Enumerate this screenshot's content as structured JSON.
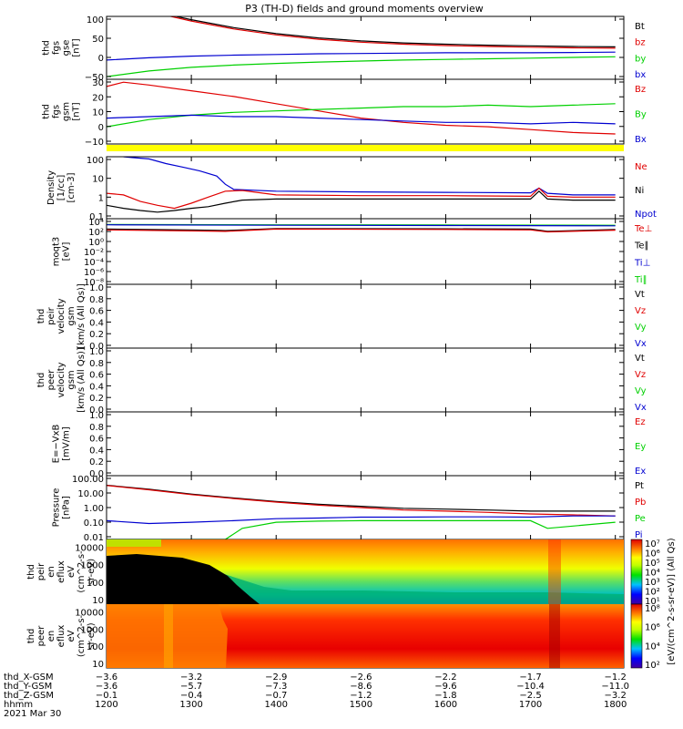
{
  "title": "P3 (TH-D) fields and ground moments overview",
  "colors": {
    "black": "#000000",
    "red": "#e00000",
    "green": "#00d000",
    "blue": "#0000d0",
    "yellow": "#ffff00"
  },
  "chart_data": [
    {
      "type": "line",
      "ylabel": [
        "thd",
        "fgs",
        "gse",
        "[nT]"
      ],
      "yticks": [
        "100",
        "50",
        "0",
        "−50"
      ],
      "ylim": [
        -80,
        110
      ],
      "legend": [
        {
          "name": "Bt",
          "color": "#000000"
        },
        {
          "name": "bz",
          "color": "#e00000"
        },
        {
          "name": "by",
          "color": "#00d000"
        },
        {
          "name": "bx",
          "color": "#0000d0"
        }
      ],
      "series": [
        {
          "name": "Bt",
          "color": "#000000",
          "x": [
            1200,
            1250,
            1300,
            1350,
            1400,
            1450,
            1500,
            1550,
            1600,
            1650,
            1700,
            1750,
            1800
          ],
          "y": [
            160,
            128,
            100,
            76,
            58,
            45,
            36,
            30,
            26,
            23,
            21,
            19,
            18
          ]
        },
        {
          "name": "bz",
          "color": "#e00000",
          "x": [
            1200,
            1250,
            1300,
            1350,
            1400,
            1450,
            1500,
            1550,
            1600,
            1650,
            1700,
            1750,
            1800
          ],
          "y": [
            158,
            125,
            96,
            72,
            54,
            41,
            32,
            26,
            22,
            19,
            17,
            15,
            14
          ]
        },
        {
          "name": "by",
          "color": "#00d000",
          "x": [
            1200,
            1250,
            1300,
            1350,
            1400,
            1450,
            1500,
            1550,
            1600,
            1650,
            1700,
            1750,
            1800
          ],
          "y": [
            -72,
            -55,
            -44,
            -37,
            -32,
            -28,
            -25,
            -22,
            -20,
            -18,
            -16,
            -14,
            -12
          ]
        },
        {
          "name": "bx",
          "color": "#0000d0",
          "x": [
            1200,
            1250,
            1300,
            1350,
            1400,
            1450,
            1500,
            1550,
            1600,
            1650,
            1700,
            1750,
            1800
          ],
          "y": [
            -22,
            -15,
            -10,
            -7,
            -5,
            -3,
            -2,
            -1,
            0,
            0,
            0,
            1,
            2
          ]
        }
      ]
    },
    {
      "type": "line",
      "ylabel": [
        "thd",
        "fgs",
        "gsm",
        "[nT]"
      ],
      "yticks": [
        "30",
        "20",
        "10",
        "0",
        "−10"
      ],
      "ylim": [
        -15,
        30
      ],
      "legend": [
        {
          "name": "Bz",
          "color": "#e00000"
        },
        {
          "name": "By",
          "color": "#00d000"
        },
        {
          "name": "Bx",
          "color": "#0000d0"
        }
      ],
      "series": [
        {
          "name": "Bz",
          "color": "#e00000",
          "x": [
            1200,
            1220,
            1250,
            1300,
            1350,
            1400,
            1450,
            1500,
            1550,
            1600,
            1650,
            1700,
            1750,
            1800
          ],
          "y": [
            25,
            28,
            26,
            22,
            18,
            13,
            8,
            3,
            0,
            -2,
            -3,
            -5,
            -7,
            -8
          ]
        },
        {
          "name": "By",
          "color": "#00d000",
          "x": [
            1200,
            1250,
            1300,
            1350,
            1400,
            1450,
            1500,
            1550,
            1600,
            1650,
            1700,
            1750,
            1800
          ],
          "y": [
            -3,
            2,
            5,
            7,
            8,
            9,
            10,
            11,
            11,
            12,
            11,
            12,
            13
          ]
        },
        {
          "name": "Bx",
          "color": "#0000d0",
          "x": [
            1200,
            1250,
            1300,
            1350,
            1400,
            1450,
            1500,
            1550,
            1600,
            1650,
            1700,
            1750,
            1800
          ],
          "y": [
            3,
            4,
            5,
            4,
            4,
            3,
            2,
            1,
            0,
            0,
            -1,
            0,
            -1
          ]
        }
      ]
    },
    {
      "type": "line",
      "scale": "log",
      "ylabel": [
        "Density",
        "[1/cc]",
        "[cm-3]"
      ],
      "yticks": [
        "100",
        "10",
        "1",
        "0.1"
      ],
      "ylim": [
        0.05,
        200
      ],
      "legend": [
        {
          "name": "Ne",
          "color": "#e00000"
        },
        {
          "name": "Ni",
          "color": "#000000"
        },
        {
          "name": "Npot",
          "color": "#0000d0"
        }
      ],
      "series": [
        {
          "name": "Npot",
          "color": "#0000d0",
          "x": [
            1220,
            1230,
            1250,
            1270,
            1290,
            1310,
            1330,
            1340,
            1350,
            1400,
            1500,
            1600,
            1700,
            1710,
            1720,
            1750,
            1800
          ],
          "y": [
            200,
            180,
            150,
            80,
            50,
            30,
            15,
            5,
            2.5,
            2,
            1.8,
            1.7,
            1.6,
            3,
            1.5,
            1.2,
            1.2
          ]
        },
        {
          "name": "Ne",
          "color": "#e00000",
          "x": [
            1200,
            1220,
            1240,
            1260,
            1280,
            1300,
            1320,
            1340,
            1360,
            1400,
            1500,
            1600,
            1700,
            1710,
            1720,
            1750,
            1800
          ],
          "y": [
            1.5,
            1.2,
            0.5,
            0.3,
            0.2,
            0.4,
            0.9,
            2,
            2.2,
            1.2,
            1.1,
            1.1,
            1.0,
            3,
            1.0,
            0.9,
            0.9
          ]
        },
        {
          "name": "Ni",
          "color": "#000000",
          "x": [
            1200,
            1220,
            1240,
            1260,
            1280,
            1300,
            1320,
            1340,
            1360,
            1400,
            1500,
            1600,
            1700,
            1710,
            1720,
            1750,
            1800
          ],
          "y": [
            0.3,
            0.2,
            0.15,
            0.12,
            0.15,
            0.2,
            0.25,
            0.4,
            0.6,
            0.7,
            0.7,
            0.7,
            0.7,
            2,
            0.7,
            0.6,
            0.6
          ]
        }
      ]
    },
    {
      "type": "line",
      "scale": "log",
      "ylabel": [
        "moqt3",
        "[eV]"
      ],
      "yticks": [
        "10⁴",
        "10²",
        "10⁰",
        "10⁻²",
        "10⁻⁴",
        "10⁻⁶",
        "10⁻⁸"
      ],
      "ylim": [
        1e-09,
        100000.0
      ],
      "legend": [
        {
          "name": "Te⊥",
          "color": "#e00000"
        },
        {
          "name": "Te∥",
          "color": "#000000"
        },
        {
          "name": "Ti⊥",
          "color": "#0000d0"
        },
        {
          "name": "Ti∥",
          "color": "#00d000"
        }
      ],
      "series": [
        {
          "name": "Ti∥",
          "color": "#00d000",
          "x": [
            1200,
            1400,
            1600,
            1800
          ],
          "y": [
            6000,
            5000,
            4500,
            4000
          ]
        },
        {
          "name": "Ti⊥",
          "color": "#0000d0",
          "x": [
            1200,
            1400,
            1600,
            1800
          ],
          "y": [
            5000,
            4000,
            3500,
            3000
          ]
        },
        {
          "name": "Te∥",
          "color": "#000000",
          "x": [
            1200,
            1300,
            1340,
            1400,
            1600,
            1700,
            1720,
            1800
          ],
          "y": [
            600,
            400,
            300,
            800,
            700,
            600,
            200,
            500
          ]
        },
        {
          "name": "Te⊥",
          "color": "#e00000",
          "x": [
            1200,
            1300,
            1340,
            1400,
            1600,
            1700,
            1720,
            1800
          ],
          "y": [
            400,
            250,
            200,
            600,
            500,
            400,
            150,
            350
          ]
        }
      ]
    },
    {
      "type": "line",
      "ylabel": [
        "thd",
        "peir",
        "velocity",
        "gsm",
        "[km/s (All Qs)]"
      ],
      "yticks": [
        "1.0",
        "0.8",
        "0.6",
        "0.4",
        "0.2",
        "0.0"
      ],
      "ylim": [
        0,
        1
      ],
      "legend": [
        {
          "name": "Vt",
          "color": "#000000"
        },
        {
          "name": "Vz",
          "color": "#e00000"
        },
        {
          "name": "Vy",
          "color": "#00d000"
        },
        {
          "name": "Vx",
          "color": "#0000d0"
        }
      ],
      "series": []
    },
    {
      "type": "line",
      "ylabel": [
        "thd",
        "peer",
        "velocity",
        "gsm",
        "[km/s (All Qs)]"
      ],
      "yticks": [
        "1.0",
        "0.8",
        "0.6",
        "0.4",
        "0.2",
        "0.0"
      ],
      "ylim": [
        0,
        1
      ],
      "legend": [
        {
          "name": "Vt",
          "color": "#000000"
        },
        {
          "name": "Vz",
          "color": "#e00000"
        },
        {
          "name": "Vy",
          "color": "#00d000"
        },
        {
          "name": "Vx",
          "color": "#0000d0"
        }
      ],
      "series": []
    },
    {
      "type": "line",
      "ylabel": [
        "E=−VxB",
        "[mV/m]"
      ],
      "yticks": [
        "1.0",
        "0.8",
        "0.6",
        "0.4",
        "0.2",
        "0.0"
      ],
      "ylim": [
        0,
        1
      ],
      "legend": [
        {
          "name": "Ez",
          "color": "#e00000"
        },
        {
          "name": "Ey",
          "color": "#00d000"
        },
        {
          "name": "Ex",
          "color": "#0000d0"
        }
      ],
      "series": []
    },
    {
      "type": "line",
      "scale": "log",
      "ylabel": [
        "Pressure",
        "[nPa]"
      ],
      "yticks": [
        "100.00",
        "10.00",
        "1.00",
        "0.10",
        "0.01"
      ],
      "ylim": [
        0.01,
        100
      ],
      "legend": [
        {
          "name": "Pt",
          "color": "#000000"
        },
        {
          "name": "Pb",
          "color": "#e00000"
        },
        {
          "name": "Pe",
          "color": "#00d000"
        },
        {
          "name": "Pi",
          "color": "#0000d0"
        }
      ],
      "series": [
        {
          "name": "Pt",
          "color": "#000000",
          "x": [
            1200,
            1250,
            1300,
            1350,
            1400,
            1450,
            1500,
            1550,
            1600,
            1650,
            1700,
            1750,
            1800
          ],
          "y": [
            25,
            14,
            7,
            4,
            2.4,
            1.6,
            1.2,
            0.9,
            0.8,
            0.7,
            0.6,
            0.6,
            0.6
          ]
        },
        {
          "name": "Pb",
          "color": "#e00000",
          "x": [
            1200,
            1250,
            1300,
            1350,
            1400,
            1450,
            1500,
            1550,
            1600,
            1650,
            1700,
            1750,
            1800
          ],
          "y": [
            24,
            13,
            6.5,
            3.7,
            2.2,
            1.4,
            1.0,
            0.7,
            0.6,
            0.5,
            0.4,
            0.35,
            0.3
          ]
        },
        {
          "name": "Pi",
          "color": "#0000d0",
          "x": [
            1200,
            1250,
            1300,
            1350,
            1400,
            1450,
            1500,
            1550,
            1600,
            1650,
            1700,
            1750,
            1800
          ],
          "y": [
            0.15,
            0.1,
            0.12,
            0.15,
            0.2,
            0.22,
            0.25,
            0.25,
            0.26,
            0.26,
            0.25,
            0.3,
            0.3
          ]
        },
        {
          "name": "Pe",
          "color": "#00d000",
          "x": [
            1200,
            1250,
            1300,
            1340,
            1360,
            1400,
            1450,
            1500,
            1600,
            1700,
            1720,
            1800
          ],
          "y": [
            0.01,
            0.01,
            0.01,
            0.01,
            0.05,
            0.12,
            0.14,
            0.15,
            0.15,
            0.15,
            0.05,
            0.12
          ]
        }
      ]
    },
    {
      "type": "heatmap",
      "ylabel": [
        "thd",
        "peir",
        "en",
        "eflux",
        "eV",
        "(cm^2-s-",
        "sr-eV)"
      ],
      "yticks": [
        "10000",
        "1000",
        "100",
        "10"
      ],
      "ylim": [
        5,
        25000
      ],
      "colorbar": {
        "label": "[eV/(cm^2-s-sr-eV)] (All Qs)",
        "ticks": [
          "10⁷",
          "10⁶",
          "10⁵",
          "10⁴",
          "10³",
          "10²",
          "10¹"
        ],
        "range": [
          1,
          7
        ]
      }
    },
    {
      "type": "heatmap",
      "ylabel": [
        "thd",
        "peer",
        "en",
        "eflux",
        "eV",
        "(cm^2-s-",
        "sr-eV)"
      ],
      "yticks": [
        "10000",
        "1000",
        "100",
        "10"
      ],
      "ylim": [
        5,
        25000
      ],
      "colorbar": {
        "label": "[eV/(cm^2-s-sr-eV)]",
        "ticks": [
          "10⁸",
          "10⁶",
          "10⁴",
          "10²"
        ],
        "range": [
          1,
          8
        ]
      }
    }
  ],
  "xaxis": {
    "ticks": [
      1200,
      1300,
      1400,
      1500,
      1600,
      1700,
      1800
    ],
    "range": [
      1200,
      1810
    ],
    "rows": [
      {
        "label": "thd_X-GSM",
        "values": [
          "−3.6",
          "−3.2",
          "−2.9",
          "−2.6",
          "−2.2",
          "−1.7",
          "−1.2"
        ]
      },
      {
        "label": "thd_Y-GSM",
        "values": [
          "−3.6",
          "−5.7",
          "−7.3",
          "−8.6",
          "−9.6",
          "−10.4",
          "−11.0"
        ]
      },
      {
        "label": "thd_Z-GSM",
        "values": [
          "−0.1",
          "−0.4",
          "−0.7",
          "−1.2",
          "−1.8",
          "−2.5",
          "−3.2"
        ]
      },
      {
        "label": "hhmm",
        "values": [
          "1200",
          "1300",
          "1400",
          "1500",
          "1600",
          "1700",
          "1800"
        ]
      }
    ],
    "date": "2021 Mar 30"
  }
}
